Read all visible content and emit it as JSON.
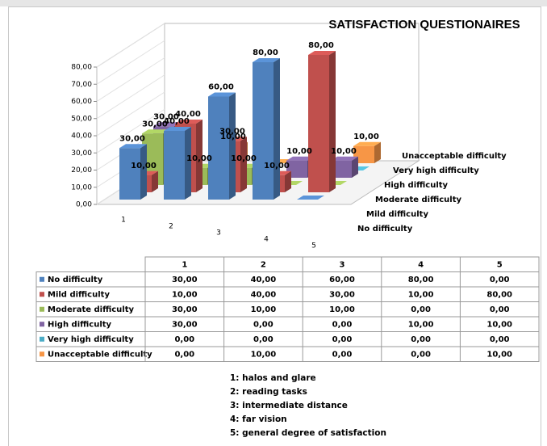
{
  "chart_data": {
    "type": "bar3d",
    "title": "SATISFACTION QUESTIONAIRES",
    "categories": [
      "1",
      "2",
      "3",
      "4",
      "5"
    ],
    "series": [
      {
        "name": "No difficulty",
        "color": "#4f81bd",
        "values": [
          30,
          40,
          60,
          80,
          0
        ],
        "value_labels": [
          "30,00",
          "40,00",
          "60,00",
          "80,00",
          "0,00"
        ]
      },
      {
        "name": "Mild difficulty",
        "color": "#c0504d",
        "values": [
          10,
          40,
          30,
          10,
          80
        ],
        "value_labels": [
          "10,00",
          "40,00",
          "30,00",
          "10,00",
          "80,00"
        ]
      },
      {
        "name": "Moderate difficulty",
        "color": "#9bbb59",
        "values": [
          30,
          10,
          10,
          0,
          0
        ],
        "value_labels": [
          "30,00",
          "10,00",
          "10,00",
          "0,00",
          "0,00"
        ]
      },
      {
        "name": "High difficulty",
        "color": "#8064a2",
        "values": [
          30,
          0,
          0,
          10,
          10
        ],
        "value_labels": [
          "30,00",
          "0,00",
          "0,00",
          "10,00",
          "10,00"
        ]
      },
      {
        "name": "Very high difficulty",
        "color": "#4bacc6",
        "values": [
          0,
          0,
          0,
          0,
          0
        ],
        "value_labels": [
          "0,00",
          "0,00",
          "0,00",
          "0,00",
          "0,00"
        ]
      },
      {
        "name": "Unacceptable difficulty",
        "color": "#f79646",
        "values": [
          0,
          10,
          0,
          0,
          10
        ],
        "value_labels": [
          "0,00",
          "10,00",
          "0,00",
          "0,00",
          "10,00"
        ]
      }
    ],
    "ylim": [
      0,
      80
    ],
    "yticks": [
      {
        "value": 0,
        "label": "0,00"
      },
      {
        "value": 10,
        "label": "10,00"
      },
      {
        "value": 20,
        "label": "20,00"
      },
      {
        "value": 30,
        "label": "30,00"
      },
      {
        "value": 40,
        "label": "40,00"
      },
      {
        "value": 50,
        "label": "50,00"
      },
      {
        "value": 60,
        "label": "60,00"
      },
      {
        "value": 70,
        "label": "70,00"
      },
      {
        "value": 80,
        "label": "80,00"
      }
    ],
    "notes": [
      "1:  halos  and glare",
      "2:  reading  tasks",
      "3: intermediate distance",
      "4: far vision",
      "5:  general degree of satisfaction"
    ]
  }
}
